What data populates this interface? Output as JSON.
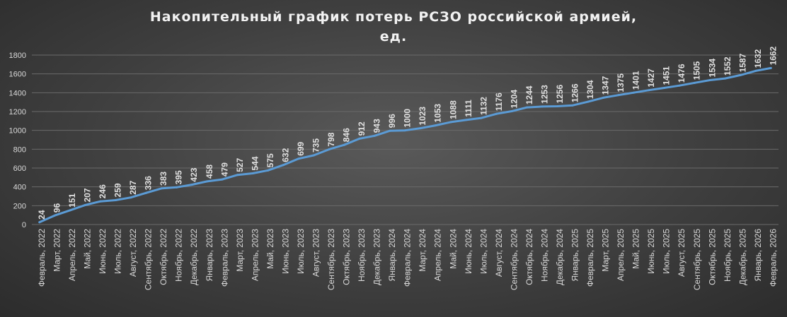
{
  "chart_data": {
    "type": "line",
    "title_line1": "Накопительный график потерь РСЗО российской армией,",
    "title_line2": "ед.",
    "xlabel": "",
    "ylabel": "",
    "ylim": [
      0,
      1800
    ],
    "yticks": [
      0,
      200,
      400,
      600,
      800,
      1000,
      1200,
      1400,
      1600,
      1800
    ],
    "grid": true,
    "legend": "none",
    "line_color": "#5b9bd5",
    "categories": [
      "Февраль, 2022",
      "Март, 2022",
      "Апрель, 2022",
      "Май, 2022",
      "Июнь, 2022",
      "Июль, 2022",
      "Август, 2022",
      "Сентябрь, 2022",
      "Октябрь, 2022",
      "Ноябрь, 2022",
      "Декабрь, 2022",
      "Январь, 2023",
      "Февраль, 2023",
      "Март, 2023",
      "Апрель, 2023",
      "Май, 2023",
      "Июнь, 2023",
      "Июль, 2023",
      "Август, 2023",
      "Сентябрь, 2023",
      "Октябрь, 2023",
      "Ноябрь, 2023",
      "Декабрь, 2023",
      "Январь, 2024",
      "Февраль, 2024",
      "Март, 2024",
      "Апрель, 2024",
      "Май, 2024",
      "Июнь, 2024",
      "Июль, 2024",
      "Август, 2024",
      "Сентябрь, 2024",
      "Октябрь, 2024",
      "Ноябрь, 2024",
      "Декабрь, 2024",
      "Январь, 2025",
      "Февраль, 2025",
      "Март, 2025",
      "Апрель, 2025",
      "Май, 2025",
      "Июнь, 2025",
      "Июль, 2025",
      "Август, 2025",
      "Сентябрь, 2025",
      "Октябрь, 2025",
      "Ноябрь, 2025",
      "Декабрь, 2025",
      "Январь, 2026",
      "Февраль, 2026"
    ],
    "values": [
      24,
      96,
      151,
      207,
      246,
      259,
      287,
      336,
      383,
      395,
      423,
      458,
      479,
      527,
      544,
      575,
      632,
      699,
      735,
      798,
      846,
      912,
      943,
      996,
      1000,
      1023,
      1053,
      1088,
      1111,
      1132,
      1176,
      1204,
      1244,
      1253,
      1256,
      1266,
      1304,
      1347,
      1375,
      1401,
      1427,
      1451,
      1476,
      1505,
      1534,
      1552,
      1587,
      1632,
      1662
    ]
  }
}
